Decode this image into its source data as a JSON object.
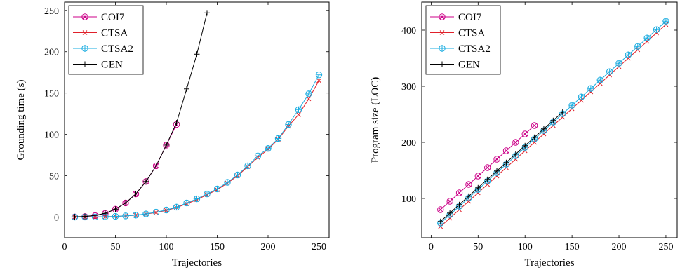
{
  "chart_data": [
    {
      "type": "line",
      "title": "",
      "xlabel": "Trajectories",
      "ylabel": "Grounding time (s)",
      "xlim": [
        0,
        260
      ],
      "ylim": [
        -25,
        260
      ],
      "xticks": [
        0,
        50,
        100,
        150,
        200,
        250
      ],
      "yticks": [
        0,
        50,
        100,
        150,
        200,
        250
      ],
      "legend": "top-left",
      "grid": false,
      "series": [
        {
          "name": "COI7",
          "color": "#cc0088",
          "marker": "otimes",
          "x": [
            10,
            20,
            30,
            40,
            50,
            60,
            70,
            80,
            90,
            100,
            110
          ],
          "y": [
            0.2,
            0.6,
            1.8,
            4.5,
            9.5,
            17,
            28,
            43,
            62,
            87,
            112
          ]
        },
        {
          "name": "CTSA",
          "color": "#e0202a",
          "marker": "x",
          "x": [
            10,
            20,
            30,
            40,
            50,
            60,
            70,
            80,
            90,
            100,
            110,
            120,
            130,
            140,
            150,
            160,
            170,
            180,
            190,
            200,
            210,
            220,
            230,
            240,
            250
          ],
          "y": [
            0,
            0.1,
            0.2,
            0.4,
            0.8,
            1.4,
            2.2,
            3.5,
            5.5,
            8,
            11.5,
            16,
            21,
            27,
            33,
            41,
            50,
            61,
            72,
            82,
            94,
            110,
            124,
            143,
            165
          ]
        },
        {
          "name": "CTSA2",
          "color": "#1aace0",
          "marker": "oplus",
          "x": [
            10,
            20,
            30,
            40,
            50,
            60,
            70,
            80,
            90,
            100,
            110,
            120,
            130,
            140,
            150,
            160,
            170,
            180,
            190,
            200,
            210,
            220,
            230,
            240,
            250
          ],
          "y": [
            0,
            0.1,
            0.2,
            0.4,
            0.8,
            1.4,
            2.3,
            3.8,
            6,
            8.5,
            12,
            17,
            22,
            28,
            34,
            42,
            51,
            62,
            74,
            83,
            95,
            112,
            130,
            149,
            172
          ]
        },
        {
          "name": "GEN",
          "color": "#000000",
          "marker": "plus",
          "x": [
            10,
            20,
            30,
            40,
            50,
            60,
            70,
            80,
            90,
            100,
            110,
            120,
            130,
            140
          ],
          "y": [
            0.3,
            0.8,
            2,
            4.5,
            9.5,
            17,
            28,
            43,
            62,
            87,
            114,
            155,
            197,
            247
          ]
        }
      ]
    },
    {
      "type": "line",
      "title": "",
      "xlabel": "Trajectories",
      "ylabel": "Program size (LOC)",
      "xlim": [
        -10,
        262
      ],
      "ylim": [
        30,
        450
      ],
      "xticks": [
        0,
        50,
        100,
        150,
        200,
        250
      ],
      "yticks": [
        100,
        200,
        300,
        400
      ],
      "legend": "top-left",
      "grid": false,
      "series": [
        {
          "name": "COI7",
          "color": "#cc0088",
          "marker": "otimes",
          "x": [
            10,
            20,
            30,
            40,
            50,
            60,
            70,
            80,
            90,
            100,
            110
          ],
          "y": [
            80,
            95,
            110,
            125,
            140,
            155,
            170,
            185,
            200,
            215,
            230
          ]
        },
        {
          "name": "CTSA",
          "color": "#e0202a",
          "marker": "x",
          "x": [
            10,
            20,
            30,
            40,
            50,
            60,
            70,
            80,
            90,
            100,
            110,
            120,
            130,
            140,
            150,
            160,
            170,
            180,
            190,
            200,
            210,
            220,
            230,
            240,
            250
          ],
          "y": [
            50,
            65,
            80,
            95,
            110,
            125,
            140,
            155,
            170,
            185,
            200,
            215,
            230,
            245,
            260,
            275,
            290,
            305,
            320,
            335,
            350,
            365,
            380,
            395,
            410
          ]
        },
        {
          "name": "CTSA2",
          "color": "#1aace0",
          "marker": "oplus",
          "x": [
            10,
            20,
            30,
            40,
            50,
            60,
            70,
            80,
            90,
            100,
            110,
            120,
            130,
            140,
            150,
            160,
            170,
            180,
            190,
            200,
            210,
            220,
            230,
            240,
            250
          ],
          "y": [
            56,
            71,
            86,
            101,
            116,
            131,
            146,
            161,
            176,
            191,
            206,
            221,
            236,
            251,
            266,
            281,
            296,
            311,
            326,
            341,
            356,
            371,
            386,
            401,
            416
          ]
        },
        {
          "name": "GEN",
          "color": "#000000",
          "marker": "plus",
          "x": [
            10,
            20,
            30,
            40,
            50,
            60,
            70,
            80,
            90,
            100,
            110,
            120,
            130,
            140
          ],
          "y": [
            59,
            74,
            89,
            104,
            119,
            134,
            149,
            164,
            179,
            194,
            209,
            224,
            239,
            254
          ]
        }
      ]
    }
  ]
}
